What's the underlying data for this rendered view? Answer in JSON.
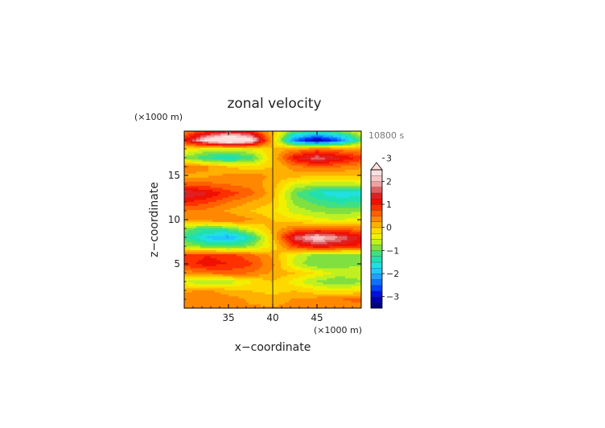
{
  "chart_data": {
    "type": "heatmap",
    "title": "zonal velocity",
    "xlabel": "x−coordinate",
    "ylabel": "z−coordinate",
    "x_unit": "(×1000 m)",
    "y_unit": "(×1000 m)",
    "time_label": "10800 s",
    "xlim": [
      30,
      50
    ],
    "ylim": [
      0,
      20
    ],
    "x_ticks": [
      35,
      40,
      45
    ],
    "y_ticks": [
      5,
      10,
      15
    ],
    "colorbar": {
      "levels": [
        -3.5,
        -3.25,
        -3,
        -2.75,
        -2.5,
        -2.25,
        -2,
        -1.75,
        -1.5,
        -1.25,
        -1,
        -0.75,
        -0.5,
        -0.25,
        0,
        0.25,
        0.5,
        0.75,
        1,
        1.25,
        1.5,
        1.75,
        2,
        2.25,
        2.5,
        2.75,
        3,
        3.25,
        3.5
      ],
      "tick_values": [
        -3,
        -2,
        -1,
        0,
        1,
        2,
        3
      ],
      "tick_labels": [
        "−3",
        "−2",
        "−1",
        "0",
        "1",
        "2",
        "3"
      ],
      "extend": "max",
      "colors": [
        "#000080",
        "#0000b0",
        "#0010e0",
        "#0040ff",
        "#1070ff",
        "#20a0ff",
        "#20c8ff",
        "#20e0e0",
        "#20e0b0",
        "#40e080",
        "#80e040",
        "#c0f020",
        "#f0f000",
        "#ffd800",
        "#ffb000",
        "#ff8800",
        "#ff6000",
        "#ff3000",
        "#f01000",
        "#e02020",
        "#e06060",
        "#f0a0a0",
        "#f8c8c8",
        "#ffe0e0"
      ]
    },
    "field": {
      "x": [
        30,
        32.5,
        35,
        37.5,
        40,
        42.5,
        45,
        47.5,
        50
      ],
      "z": [
        0,
        1,
        2,
        3,
        4,
        5,
        6,
        7,
        8,
        9,
        10,
        11,
        12,
        13,
        14,
        15,
        16,
        17,
        18,
        19,
        20
      ],
      "u": [
        [
          0.3,
          0.3,
          0.3,
          0.3,
          0.3,
          0.3,
          0.3,
          0.3,
          0.3
        ],
        [
          0.4,
          0.5,
          0.4,
          0.2,
          0.1,
          0.3,
          0.4,
          0.5,
          0.6
        ],
        [
          0.2,
          0.3,
          0.1,
          0.0,
          -0.1,
          0.0,
          -0.2,
          -0.3,
          -0.2
        ],
        [
          -0.5,
          -0.8,
          -0.7,
          -0.3,
          0.0,
          -0.4,
          -0.8,
          -1.0,
          -0.8
        ],
        [
          0.3,
          0.5,
          0.6,
          0.5,
          0.2,
          0.0,
          -0.3,
          -0.6,
          -0.5
        ],
        [
          0.9,
          1.1,
          1.0,
          0.8,
          0.3,
          -0.6,
          -1.0,
          -0.9,
          -0.8
        ],
        [
          0.8,
          1.0,
          0.9,
          0.6,
          0.2,
          -0.5,
          -0.9,
          -1.0,
          -0.9
        ],
        [
          -0.6,
          -1.0,
          -1.1,
          -0.8,
          -0.2,
          0.8,
          1.2,
          1.1,
          0.9
        ],
        [
          -1.2,
          -1.8,
          -2.1,
          -1.4,
          0.0,
          1.6,
          2.3,
          1.8,
          1.2
        ],
        [
          -0.8,
          -1.2,
          -1.0,
          -0.4,
          0.1,
          0.5,
          0.6,
          0.6,
          0.4
        ],
        [
          0.2,
          0.4,
          0.5,
          0.3,
          0.0,
          -0.2,
          -0.4,
          -0.5,
          -0.3
        ],
        [
          0.5,
          0.4,
          0.2,
          0.0,
          -0.2,
          -0.6,
          -0.8,
          -0.9,
          -0.8
        ],
        [
          1.0,
          0.8,
          0.5,
          0.2,
          0.0,
          -0.8,
          -1.1,
          -1.3,
          -1.2
        ],
        [
          1.6,
          1.3,
          0.9,
          0.6,
          0.1,
          -1.0,
          -1.5,
          -1.7,
          -1.6
        ],
        [
          0.7,
          0.6,
          0.5,
          0.4,
          0.1,
          -0.5,
          -0.7,
          -0.7,
          -0.6
        ],
        [
          0.1,
          0.2,
          0.3,
          0.4,
          0.2,
          0.1,
          0.0,
          0.0,
          0.0
        ],
        [
          0.6,
          0.3,
          0.0,
          -0.2,
          0.0,
          0.4,
          0.6,
          0.5,
          0.3
        ],
        [
          -0.8,
          -1.3,
          -1.5,
          -1.2,
          0.0,
          1.2,
          1.7,
          1.3,
          0.9
        ],
        [
          -0.2,
          -0.5,
          -0.6,
          -0.4,
          0.0,
          0.3,
          0.6,
          0.4,
          0.2
        ],
        [
          1.0,
          2.4,
          3.3,
          2.6,
          0.0,
          -2.4,
          -3.3,
          -2.5,
          -1.0
        ],
        [
          0.4,
          0.9,
          1.3,
          1.0,
          0.0,
          -1.0,
          -1.3,
          -0.9,
          -0.4
        ]
      ]
    }
  }
}
